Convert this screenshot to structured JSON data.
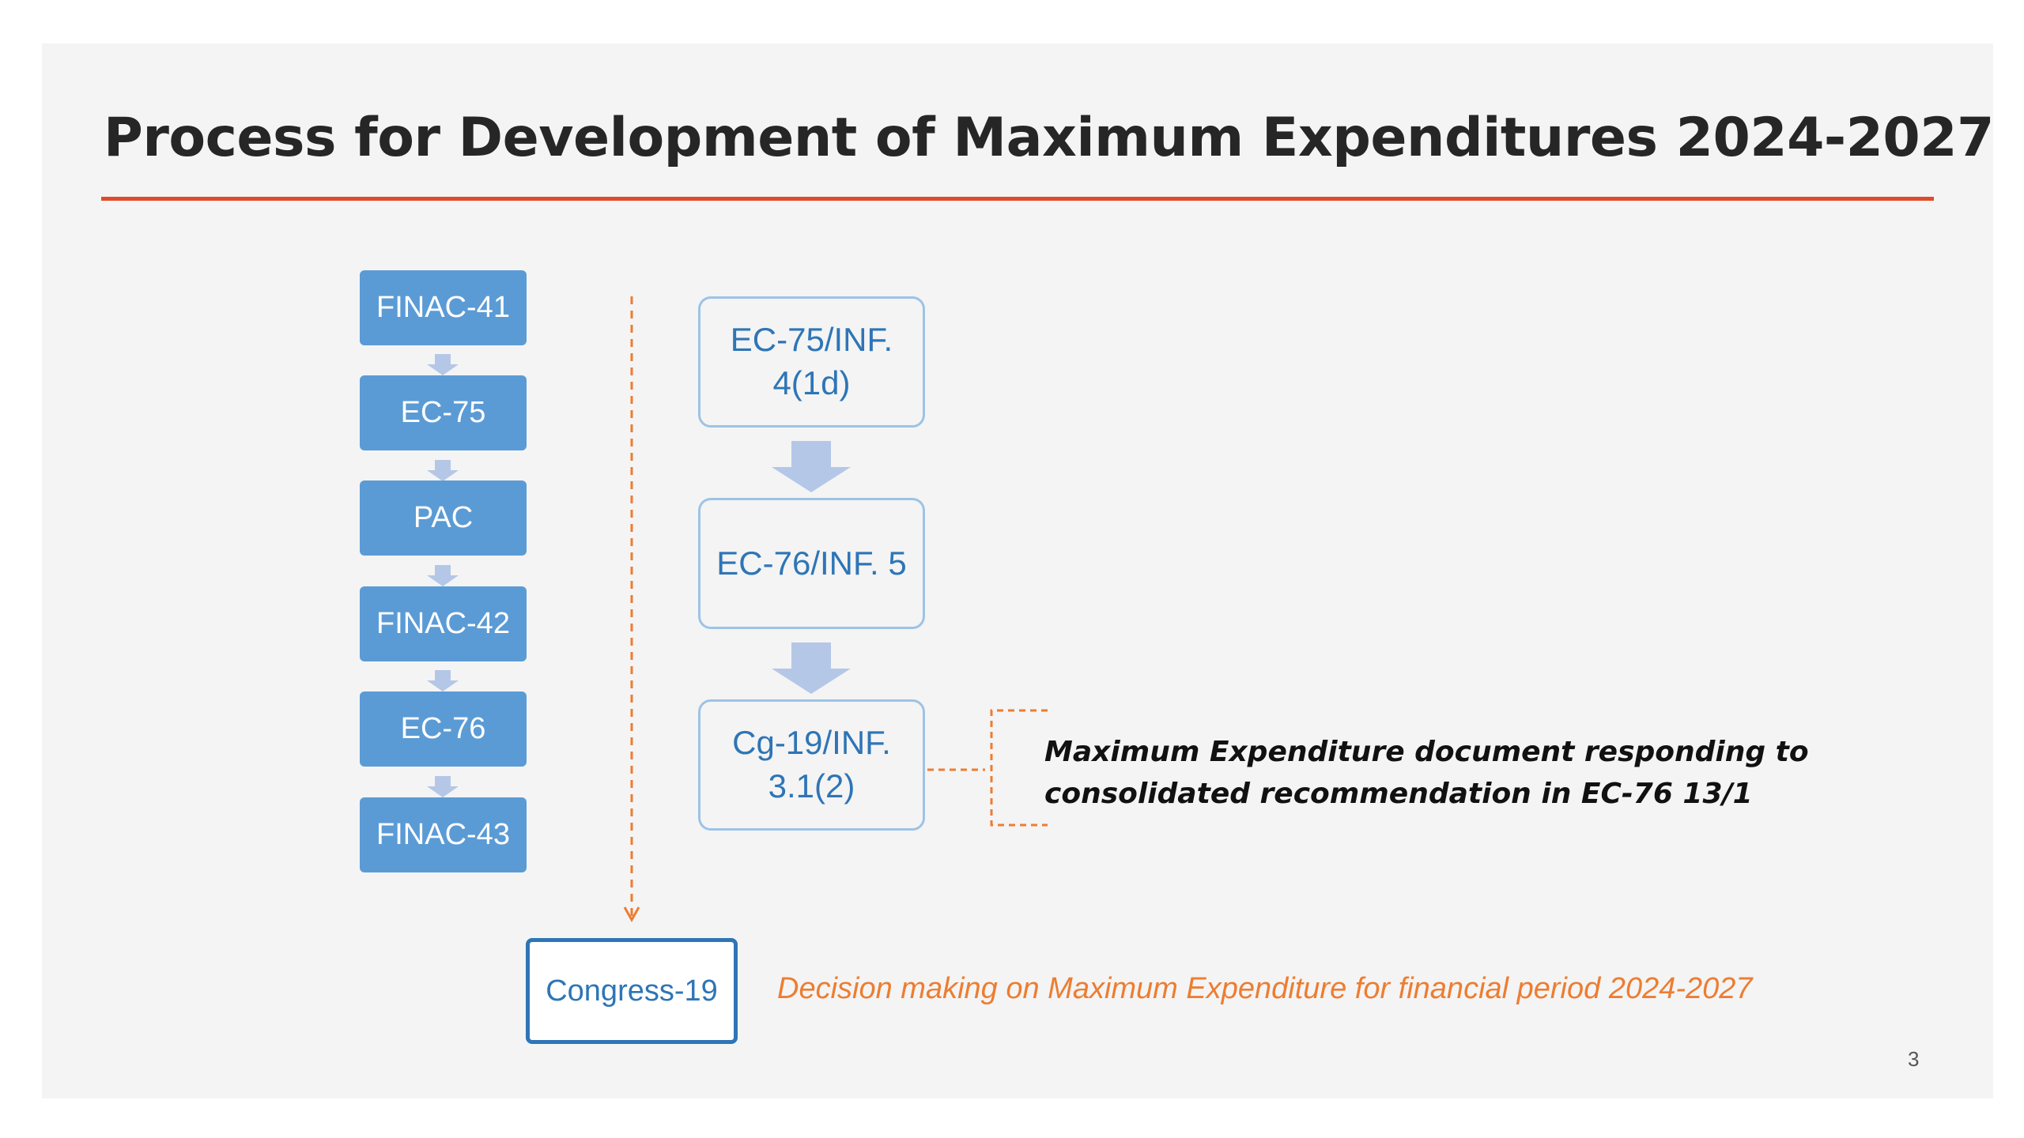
{
  "slide": {
    "title": "Process for Development of Maximum Expenditures 2024-2027",
    "page_number": "3"
  },
  "process_steps": [
    "FINAC-41",
    "EC-75",
    "PAC",
    "FINAC-42",
    "EC-76",
    "FINAC-43"
  ],
  "documents": {
    "doc1": {
      "line1": "EC-75/INF.",
      "line2": "4(1d)"
    },
    "doc2": {
      "line1": "EC-76/INF. 5"
    },
    "doc3": {
      "line1": "Cg-19/INF.",
      "line2": "3.1(2)"
    }
  },
  "note": {
    "line1": "Maximum Expenditure document responding to",
    "line2": "consolidated recommendation in EC-76 13/1"
  },
  "congress": {
    "label": "Congress-19",
    "decision": "Decision making on Maximum Expenditure for financial period 2024-2027"
  },
  "colors": {
    "accent_rule": "#e04b2a",
    "step_fill": "#5b9bd5",
    "doc_border": "#9dc3e6",
    "doc_text": "#2e75b6",
    "orange": "#ed7d31"
  }
}
